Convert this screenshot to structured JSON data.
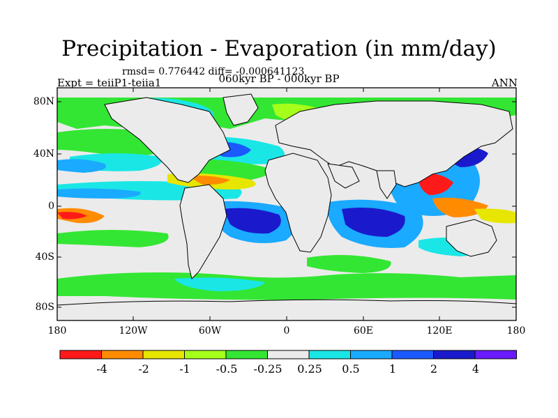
{
  "header": {
    "title": "Precipitation - Evaporation (in mm/day)",
    "stats": "rmsd= 0.776442 diff= -0.000641123",
    "experiment": "Expt = teiiP1-teiia1",
    "period": "060kyr BP - 000kyr BP",
    "season": "ANN"
  },
  "axes": {
    "lat_labels": [
      "80N",
      "40N",
      "0",
      "40S",
      "80S"
    ],
    "lon_labels": [
      "180",
      "120W",
      "60W",
      "0",
      "60E",
      "120E",
      "180"
    ]
  },
  "colorbar": {
    "colors": [
      "#ff1a1a",
      "#ff8c00",
      "#e6e600",
      "#a6ff1a",
      "#33e633",
      "#ebebeb",
      "#1ae6e6",
      "#1aaaff",
      "#1a5aff",
      "#1a1acc",
      "#6a1aff"
    ],
    "labels": [
      "-4",
      "-2",
      "-1",
      "-0.5",
      "-0.25",
      "0.25",
      "0.5",
      "1",
      "2",
      "4"
    ]
  },
  "colors": {
    "land": "#ebebeb",
    "coastline": "#000000"
  }
}
